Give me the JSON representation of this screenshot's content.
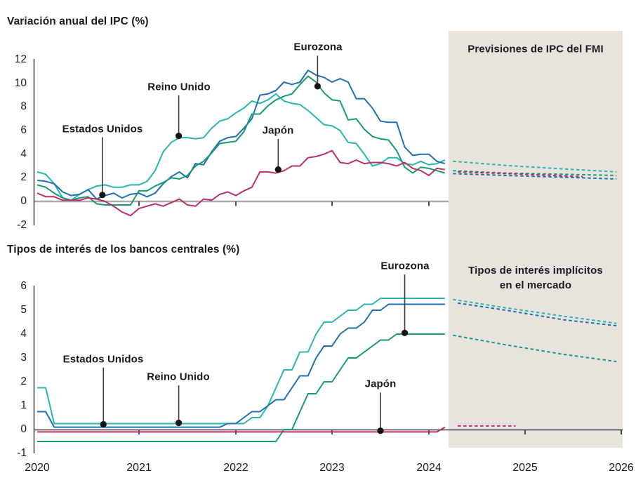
{
  "colors": {
    "us": "#2ab5ae",
    "uk": "#1f70b2",
    "ez": "#189a72",
    "jp": "#bc2f6a",
    "shade": "#e8e4dd",
    "axis": "#3c3c3c",
    "zero_line": "#ababab",
    "leader": "#3c3c3c",
    "dot": "#141414",
    "text": "#1c1c1c"
  },
  "x_axis": {
    "years": [
      "2020",
      "2021",
      "2022",
      "2023",
      "2024",
      "2025",
      "2026"
    ]
  },
  "chart_data": [
    {
      "id": "cpi",
      "type": "line",
      "title": "Variación anual del IPC (%)",
      "forecast_label": "Previsiones de IPC del FMI",
      "ylim": [
        -2,
        12
      ],
      "yticks": [
        "12",
        "10",
        "8",
        "6",
        "4",
        "2",
        "0",
        "-2"
      ],
      "x_start": 2020,
      "x_interval": "monthly",
      "xlim": [
        2020,
        2026
      ],
      "forecast_start": 2024.25,
      "series": [
        {
          "name": "Estados Unidos",
          "color_key": "us",
          "values": [
            2.5,
            2.3,
            1.5,
            0.3,
            0.1,
            0.6,
            1.0,
            1.3,
            1.4,
            1.2,
            1.2,
            1.4,
            1.4,
            1.7,
            2.6,
            4.2,
            5.0,
            5.4,
            5.4,
            5.3,
            5.4,
            6.2,
            6.8,
            7.0,
            7.5,
            7.9,
            8.5,
            8.3,
            8.6,
            9.1,
            8.5,
            8.3,
            8.2,
            7.7,
            7.1,
            6.5,
            6.4,
            6.0,
            5.0,
            4.9,
            4.0,
            3.0,
            3.2,
            3.7,
            3.7,
            3.2,
            3.1,
            3.4,
            3.1,
            3.2,
            3.5
          ]
        },
        {
          "name": "Reino Unido",
          "color_key": "uk",
          "values": [
            1.8,
            1.7,
            1.5,
            0.8,
            0.5,
            0.6,
            1.0,
            0.2,
            0.5,
            0.7,
            0.3,
            0.6,
            0.7,
            0.4,
            0.7,
            1.5,
            2.1,
            2.5,
            2.0,
            3.2,
            3.1,
            4.2,
            5.1,
            5.4,
            5.5,
            6.2,
            7.0,
            9.0,
            9.1,
            9.4,
            10.1,
            9.9,
            10.1,
            11.1,
            10.7,
            10.5,
            10.1,
            10.4,
            10.1,
            8.7,
            8.7,
            7.9,
            6.8,
            6.7,
            6.7,
            4.6,
            3.9,
            4.0,
            4.0,
            3.4,
            3.2
          ]
        },
        {
          "name": "Eurozona",
          "color_key": "ez",
          "values": [
            1.4,
            1.2,
            0.7,
            0.3,
            0.1,
            0.3,
            0.4,
            -0.2,
            -0.3,
            -0.3,
            -0.3,
            -0.3,
            0.9,
            0.9,
            1.3,
            1.6,
            2.0,
            1.9,
            2.2,
            3.0,
            3.4,
            4.1,
            4.9,
            5.0,
            5.1,
            5.9,
            7.4,
            7.4,
            8.1,
            8.6,
            8.9,
            9.1,
            9.9,
            10.6,
            10.1,
            9.2,
            8.6,
            8.5,
            6.9,
            7.0,
            6.1,
            5.5,
            5.3,
            5.2,
            4.3,
            2.9,
            2.4,
            2.9,
            2.8,
            2.6,
            2.4
          ]
        },
        {
          "name": "Japón",
          "color_key": "jp",
          "values": [
            0.7,
            0.4,
            0.4,
            0.1,
            0.1,
            0.1,
            0.3,
            0.2,
            0.0,
            -0.4,
            -0.9,
            -1.2,
            -0.6,
            -0.4,
            -0.2,
            -0.4,
            -0.1,
            0.2,
            -0.3,
            -0.4,
            0.2,
            0.1,
            0.6,
            0.8,
            0.5,
            0.9,
            1.2,
            2.5,
            2.5,
            2.4,
            2.6,
            3.0,
            3.0,
            3.7,
            3.8,
            4.0,
            4.3,
            3.3,
            3.2,
            3.5,
            3.2,
            3.3,
            3.3,
            3.2,
            3.0,
            3.3,
            2.8,
            2.6,
            2.2,
            2.8,
            2.7
          ]
        }
      ],
      "forecast": [
        {
          "name": "Estados Unidos",
          "color_key": "us",
          "x": [
            2024.25,
            2024.8,
            2025.4,
            2025.95
          ],
          "y": [
            3.4,
            3.05,
            2.75,
            2.5
          ]
        },
        {
          "name": "Reino Unido",
          "color_key": "uk",
          "x": [
            2024.25,
            2024.8,
            2025.4,
            2025.95
          ],
          "y": [
            2.35,
            2.2,
            2.05,
            1.9
          ]
        },
        {
          "name": "Eurozona",
          "color_key": "ez",
          "x": [
            2024.25,
            2024.8,
            2025.4,
            2025.95
          ],
          "y": [
            2.6,
            2.4,
            2.3,
            2.2
          ]
        },
        {
          "name": "Japón",
          "color_key": "jp",
          "x": [
            2024.3,
            2025.0,
            2025.6
          ],
          "y": [
            2.5,
            2.3,
            2.1
          ]
        }
      ],
      "annotations": [
        {
          "text": "Estados Unidos",
          "x": 2020.64,
          "dot_value": 0.55,
          "label_value": 6.15
        },
        {
          "text": "Reino Unido",
          "x": 2021.41,
          "dot_value": 5.55,
          "label_value": 9.7
        },
        {
          "text": "Eurozona",
          "x": 2022.85,
          "dot_value": 9.75,
          "label_value": 13.05
        },
        {
          "text": "Japón",
          "x": 2022.44,
          "dot_value": 2.7,
          "label_value": 6.0
        }
      ]
    },
    {
      "id": "rates",
      "type": "line",
      "title": "Tipos de interés de los bancos centrales (%)",
      "forecast_label": "Tipos de interés implícitos en el mercado",
      "ylim": [
        -1,
        6
      ],
      "yticks": [
        "6",
        "5",
        "4",
        "3",
        "2",
        "1",
        "0",
        "-1"
      ],
      "x_start": 2020,
      "x_interval": "monthly",
      "xlim": [
        2020,
        2026
      ],
      "forecast_start": 2024.25,
      "series": [
        {
          "name": "Estados Unidos",
          "color_key": "us",
          "values": [
            1.75,
            1.75,
            0.25,
            0.25,
            0.25,
            0.25,
            0.25,
            0.25,
            0.25,
            0.25,
            0.25,
            0.25,
            0.25,
            0.25,
            0.25,
            0.25,
            0.25,
            0.25,
            0.25,
            0.25,
            0.25,
            0.25,
            0.25,
            0.25,
            0.25,
            0.25,
            0.5,
            0.5,
            1.0,
            1.75,
            2.5,
            2.5,
            3.25,
            3.25,
            4.0,
            4.5,
            4.5,
            4.75,
            5.0,
            5.0,
            5.25,
            5.25,
            5.5,
            5.5,
            5.5,
            5.5,
            5.5,
            5.5,
            5.5,
            5.5,
            5.5
          ]
        },
        {
          "name": "Reino Unido",
          "color_key": "uk",
          "values": [
            0.75,
            0.75,
            0.1,
            0.1,
            0.1,
            0.1,
            0.1,
            0.1,
            0.1,
            0.1,
            0.1,
            0.1,
            0.1,
            0.1,
            0.1,
            0.1,
            0.1,
            0.1,
            0.1,
            0.1,
            0.1,
            0.1,
            0.1,
            0.25,
            0.25,
            0.5,
            0.75,
            0.75,
            1.0,
            1.25,
            1.25,
            1.75,
            2.25,
            2.25,
            3.0,
            3.5,
            3.5,
            4.0,
            4.25,
            4.25,
            4.5,
            5.0,
            5.0,
            5.25,
            5.25,
            5.25,
            5.25,
            5.25,
            5.25,
            5.25,
            5.25
          ]
        },
        {
          "name": "Eurozona",
          "color_key": "ez",
          "values": [
            -0.5,
            -0.5,
            -0.5,
            -0.5,
            -0.5,
            -0.5,
            -0.5,
            -0.5,
            -0.5,
            -0.5,
            -0.5,
            -0.5,
            -0.5,
            -0.5,
            -0.5,
            -0.5,
            -0.5,
            -0.5,
            -0.5,
            -0.5,
            -0.5,
            -0.5,
            -0.5,
            -0.5,
            -0.5,
            -0.5,
            -0.5,
            -0.5,
            -0.5,
            -0.5,
            0.0,
            0.0,
            0.75,
            1.5,
            1.5,
            2.0,
            2.0,
            2.5,
            3.0,
            3.0,
            3.25,
            3.5,
            3.75,
            3.75,
            4.0,
            4.0,
            4.0,
            4.0,
            4.0,
            4.0,
            4.0
          ]
        },
        {
          "name": "Japón",
          "color_key": "jp",
          "values": [
            -0.1,
            -0.1,
            -0.1,
            -0.1,
            -0.1,
            -0.1,
            -0.1,
            -0.1,
            -0.1,
            -0.1,
            -0.1,
            -0.1,
            -0.1,
            -0.1,
            -0.1,
            -0.1,
            -0.1,
            -0.1,
            -0.1,
            -0.1,
            -0.1,
            -0.1,
            -0.1,
            -0.1,
            -0.1,
            -0.1,
            -0.1,
            -0.1,
            -0.1,
            -0.1,
            -0.1,
            -0.1,
            -0.1,
            -0.1,
            -0.1,
            -0.1,
            -0.1,
            -0.1,
            -0.1,
            -0.1,
            -0.1,
            -0.1,
            -0.1,
            -0.1,
            -0.1,
            -0.1,
            -0.1,
            -0.1,
            -0.1,
            -0.1,
            0.1
          ]
        }
      ],
      "forecast": [
        {
          "name": "Estados Unidos",
          "color_key": "us",
          "x": [
            2024.25,
            2024.8,
            2025.4,
            2025.95
          ],
          "y": [
            5.45,
            5.1,
            4.75,
            4.45
          ]
        },
        {
          "name": "Reino Unido",
          "color_key": "uk",
          "x": [
            2024.3,
            2024.8,
            2025.4,
            2025.95
          ],
          "y": [
            5.3,
            5.0,
            4.6,
            4.35
          ]
        },
        {
          "name": "Eurozona",
          "color_key": "ez",
          "x": [
            2024.25,
            2024.8,
            2025.4,
            2025.95
          ],
          "y": [
            3.95,
            3.55,
            3.15,
            2.85
          ]
        },
        {
          "name": "Japón",
          "color_key": "jp",
          "x": [
            2024.3,
            2024.9
          ],
          "y": [
            0.15,
            0.15
          ]
        }
      ],
      "annotations": [
        {
          "text": "Estados Unidos",
          "x": 2020.65,
          "dot_value": 0.22,
          "label_value": 2.95
        },
        {
          "text": "Reino Unido",
          "x": 2021.41,
          "dot_value": 0.28,
          "label_value": 2.2
        },
        {
          "text": "Eurozona",
          "x": 2023.75,
          "dot_value": 4.05,
          "label_value": 6.85
        },
        {
          "text": "Japón",
          "x": 2023.5,
          "dot_value": -0.05,
          "label_value": 1.9
        }
      ]
    }
  ]
}
